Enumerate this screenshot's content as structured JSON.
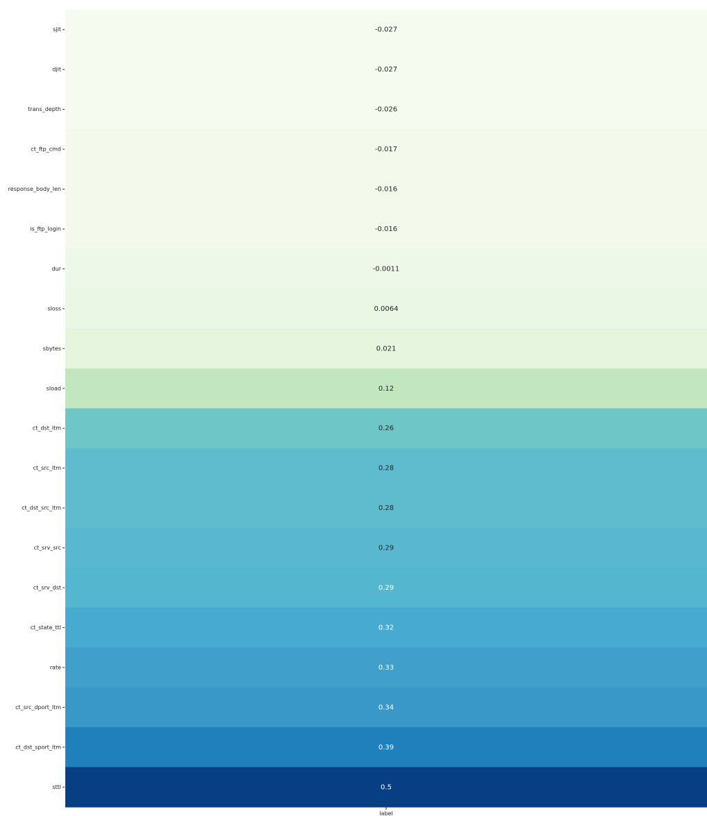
{
  "chart_data": {
    "type": "heatmap",
    "colormap": "YlGnBu",
    "annotated": true,
    "colorbar": false,
    "x_categories": [
      "label"
    ],
    "y_categories": [
      "sjit",
      "djit",
      "trans_depth",
      "ct_ftp_cmd",
      "response_body_len",
      "is_ftp_login",
      "dur",
      "sloss",
      "sbytes",
      "sload",
      "ct_dst_ltm",
      "ct_src_ltm",
      "ct_dst_src_ltm",
      "ct_srv_src",
      "ct_srv_dst",
      "ct_state_ttl",
      "rate",
      "ct_src_dport_ltm",
      "ct_dst_sport_ltm",
      "sttl"
    ],
    "values": [
      -0.027,
      -0.027,
      -0.026,
      -0.017,
      -0.016,
      -0.016,
      -0.0011,
      0.0064,
      0.021,
      0.12,
      0.26,
      0.28,
      0.28,
      0.29,
      0.29,
      0.32,
      0.33,
      0.34,
      0.39,
      0.5
    ],
    "labels": [
      "-0.027",
      "-0.027",
      "-0.026",
      "-0.017",
      "-0.016",
      "-0.016",
      "-0.0011",
      "0.0064",
      "0.021",
      "0.12",
      "0.26",
      "0.28",
      "0.28",
      "0.29",
      "0.29",
      "0.32",
      "0.33",
      "0.34",
      "0.39",
      "0.5"
    ],
    "cell_colors": [
      "#f6fbef",
      "#f6fbef",
      "#f5fbee",
      "#f3faec",
      "#f3faec",
      "#f3faec",
      "#eef8e9",
      "#eaf7e4",
      "#e5f5de",
      "#c2e6c0",
      "#6fc6c6",
      "#5fbccf",
      "#5fbccf",
      "#59b8d0",
      "#55b6d0",
      "#47aad1",
      "#419fcb",
      "#3a98c9",
      "#2080bb",
      "#083f84"
    ],
    "text_colors": [
      "#262626",
      "#262626",
      "#262626",
      "#262626",
      "#262626",
      "#262626",
      "#262626",
      "#262626",
      "#262626",
      "#262626",
      "#262626",
      "#262626",
      "#262626",
      "#262626",
      "#ffffff",
      "#ffffff",
      "#ffffff",
      "#ffffff",
      "#ffffff",
      "#ffffff"
    ]
  }
}
